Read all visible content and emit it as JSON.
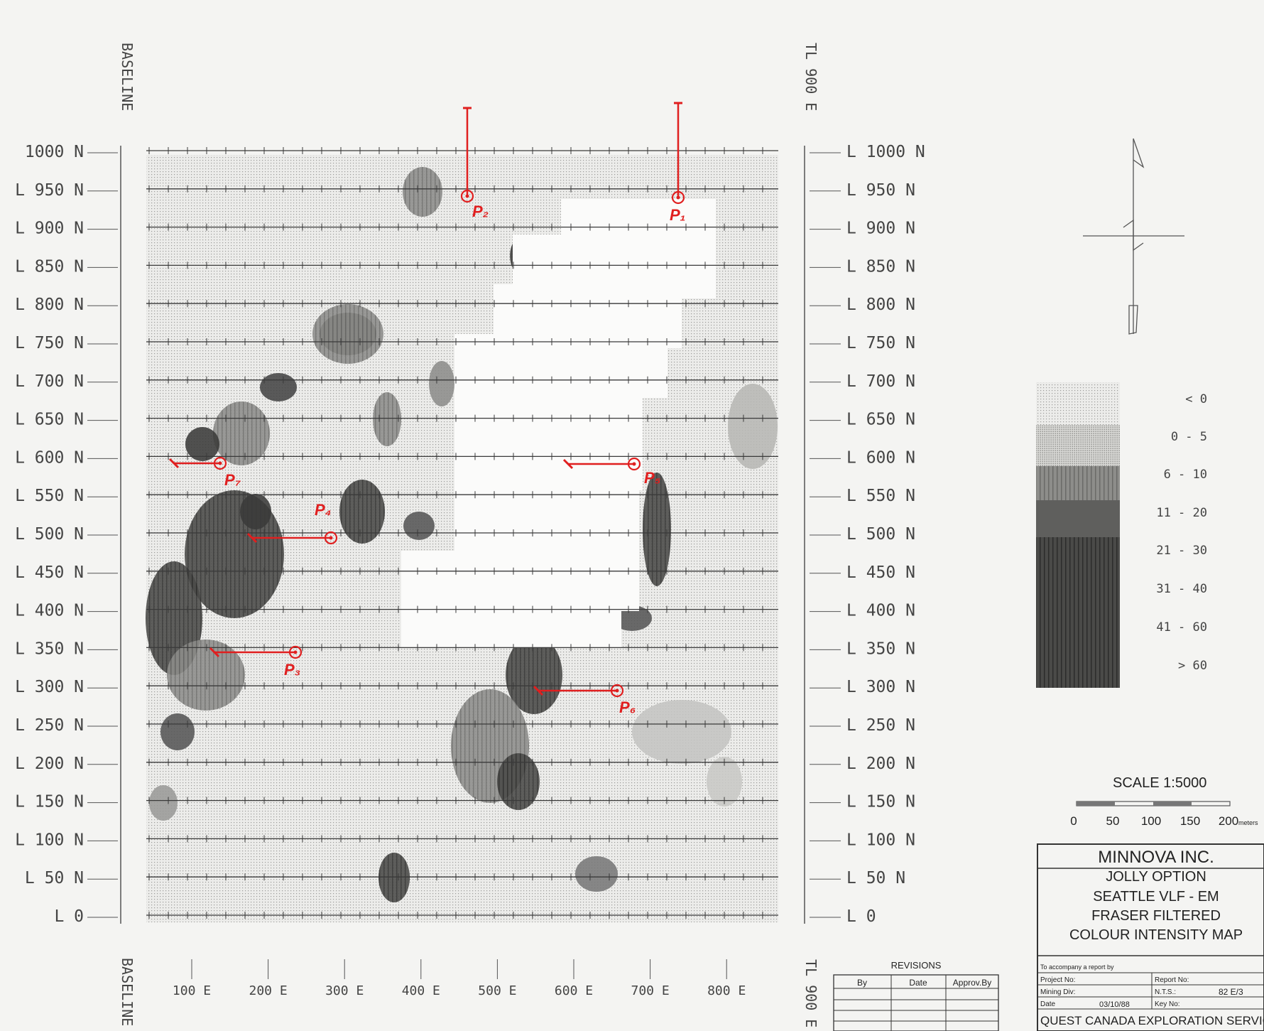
{
  "map": {
    "baseline_label": "BASELINE",
    "tieline_label": "TL 900 E",
    "lines_left": [
      "1000 N",
      "L 950 N",
      "L 900 N",
      "L 850 N",
      "L 800 N",
      "L 750 N",
      "L 700 N",
      "L 650 N",
      "L 600 N",
      "L 550 N",
      "L 500 N",
      "L 450 N",
      "L 400 N",
      "L 350 N",
      "L 300 N",
      "L 250 N",
      "L 200 N",
      "L 150 N",
      "L 100 N",
      "L 50 N",
      "L 0"
    ],
    "lines_right": [
      "L 1000 N",
      "L 950 N",
      "L 900 N",
      "L 850 N",
      "L 800 N",
      "L 750 N",
      "L 700 N",
      "L 650 N",
      "L 600 N",
      "L 550 N",
      "L 500 N",
      "L 450 N",
      "L 400 N",
      "L 350 N",
      "L 300 N",
      "L 250 N",
      "L 200 N",
      "L 150 N",
      "L 100 N",
      "L 50 N",
      "L 0"
    ],
    "stations": [
      "100 E",
      "200 E",
      "300 E",
      "400 E",
      "500 E",
      "600 E",
      "700 E",
      "800 E"
    ],
    "points": [
      {
        "id": "P1",
        "label": "P₁",
        "line_n": 950,
        "station_e": 700
      },
      {
        "id": "P2",
        "label": "P₂",
        "line_n": 950,
        "station_e": 420
      },
      {
        "id": "P3",
        "label": "P₃",
        "line_n": 350,
        "station_e": 190
      },
      {
        "id": "P4",
        "label": "P₄",
        "line_n": 500,
        "station_e": 240
      },
      {
        "id": "P5",
        "label": "P₅",
        "line_n": 600,
        "station_e": 640
      },
      {
        "id": "P6",
        "label": "P₆",
        "line_n": 300,
        "station_e": 620
      },
      {
        "id": "P7",
        "label": "P₇",
        "line_n": 600,
        "station_e": 90
      }
    ]
  },
  "legend": {
    "bins": [
      "<   0",
      "0 -   5",
      "6 -  10",
      "11 -  20",
      "21 -  30",
      "31 -  40",
      "41 -  60",
      ">  60"
    ],
    "colors": [
      "#e9e9e6",
      "#dcdcd8",
      "#a9a9a6",
      "#7a7a78",
      "#3e3e3d",
      "#3e3e3d",
      "#3e3e3d",
      "#3e3e3d"
    ]
  },
  "scale": {
    "label": "SCALE  1:5000",
    "ticks": [
      "0",
      "50",
      "100",
      "150",
      "200"
    ],
    "unit": "meters"
  },
  "title_block": {
    "company": "MINNOVA INC.",
    "lines": [
      "JOLLY OPTION",
      "SEATTLE VLF - EM",
      "FRASER FILTERED",
      "COLOUR INTENSITY MAP"
    ],
    "accompany": "To accompany a report by",
    "project_no": "Project No:",
    "report_no": "Report No:",
    "mining_div": "Mining Div:",
    "nts_label": "N.T.S.:",
    "nts_value": "82 E/3",
    "date_label": "Date",
    "date_value": "03/10/88",
    "key_no": "Key No:",
    "contractor": "QUEST CANADA EXPLORATION SERVICES INC."
  },
  "revisions": {
    "title": "REVISIONS",
    "headers": [
      "By",
      "Date",
      "Approv.By"
    ]
  }
}
